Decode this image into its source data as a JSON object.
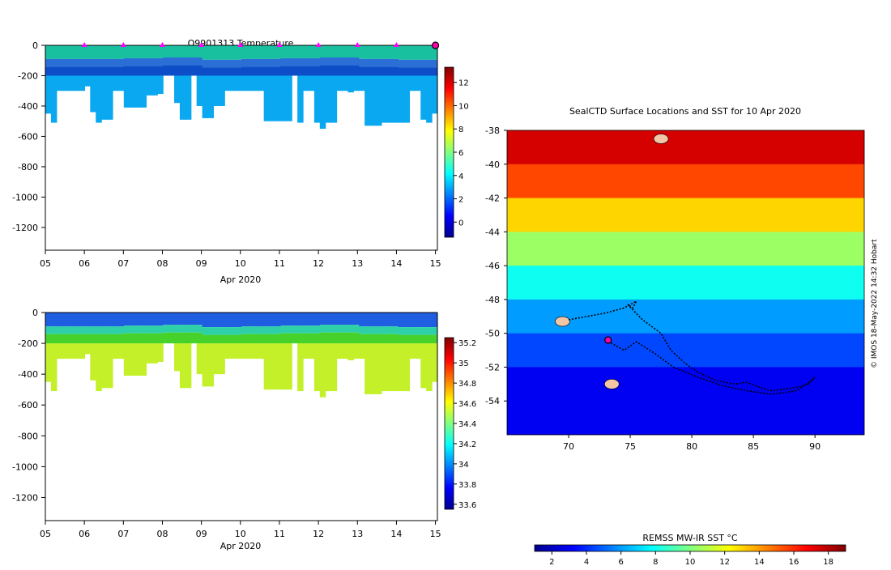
{
  "colors": {
    "jet": [
      "#00008f",
      "#0000ff",
      "#0080ff",
      "#00ffff",
      "#80ff80",
      "#ffff00",
      "#ff8000",
      "#ff0000",
      "#800000"
    ],
    "temp_surface": "#19c0a0",
    "temp_mid": "#2b6fd6",
    "temp_deep": "#0d4ec8",
    "temp_bottom": "#0aa8f0",
    "sal_surface": "#1f5ee0",
    "sal_mid": "#2ed0a8",
    "sal_deep": "#46d22a",
    "sal_bottom": "#c4f02a",
    "profile_marker": "#ff00ff",
    "current_marker": "#ff00aa",
    "track": "#000000"
  },
  "chart_data": [
    {
      "type": "heatmap",
      "title": "Q9901313  Temperature",
      "xlabel": "Apr 2020",
      "ylabel": "",
      "x_ticks": [
        "05",
        "06",
        "07",
        "08",
        "09",
        "10",
        "11",
        "12",
        "13",
        "14",
        "15"
      ],
      "x_range": [
        5,
        15.05
      ],
      "y_ticks": [
        0,
        -200,
        -400,
        -600,
        -800,
        -1000,
        -1200
      ],
      "y_range": [
        -1350,
        0
      ],
      "colorbar": {
        "range": [
          -1.3,
          13.3
        ],
        "ticks": [
          0,
          2,
          4,
          6,
          8,
          10,
          12
        ],
        "labels": [
          "0",
          "2",
          "4",
          "6",
          "8",
          "10",
          "12"
        ]
      },
      "profile_markers_day": [
        6,
        7,
        8,
        9,
        10,
        11,
        12,
        13,
        14
      ],
      "current_marker_day": 15,
      "mixed_layer_depth": [
        -90,
        -90,
        -85,
        -80,
        -95,
        -90,
        -85,
        -80,
        -90,
        -95
      ],
      "profile_max_depth": [
        -450,
        -510,
        -300,
        -300,
        -300,
        -300,
        -300,
        -270,
        -440,
        -510,
        -490,
        -490,
        -300,
        -300,
        -410,
        -410,
        -410,
        -410,
        -330,
        -330,
        -320,
        -200,
        -200,
        -380,
        -490,
        -490,
        -200,
        -400,
        -480,
        -480,
        -400,
        -400,
        -300,
        -300,
        -300,
        -300,
        -300,
        -300,
        -300,
        -500,
        -500,
        -500,
        -500,
        -500,
        -200,
        -510,
        -300,
        -300,
        -510,
        -550,
        -510,
        -510,
        -300,
        -300,
        -310,
        -300,
        -300,
        -530,
        -530,
        -530,
        -510,
        -510,
        -510,
        -510,
        -510,
        -300,
        -300,
        -490,
        -510,
        -450
      ]
    },
    {
      "type": "heatmap",
      "title": "",
      "xlabel": "Apr 2020",
      "ylabel": "",
      "x_ticks": [
        "05",
        "06",
        "07",
        "08",
        "09",
        "10",
        "11",
        "12",
        "13",
        "14",
        "15"
      ],
      "x_range": [
        5,
        15.05
      ],
      "y_ticks": [
        0,
        -200,
        -400,
        -600,
        -800,
        -1000,
        -1200
      ],
      "y_range": [
        -1350,
        0
      ],
      "colorbar": {
        "range": [
          33.55,
          35.25
        ],
        "ticks": [
          33.6,
          33.8,
          34,
          34.2,
          34.4,
          34.6,
          34.8,
          35,
          35.2
        ],
        "labels": [
          "33.6",
          "33.8",
          "34",
          "34.2",
          "34.4",
          "34.6",
          "34.8",
          "35",
          "35.2"
        ]
      }
    },
    {
      "type": "heatmap",
      "title": "SealCTD Surface Locations and SST for 10 Apr 2020",
      "xlabel": "",
      "ylabel": "",
      "x_ticks": [
        70,
        75,
        80,
        85,
        90
      ],
      "x_range": [
        65,
        94
      ],
      "y_ticks": [
        -38,
        -40,
        -42,
        -44,
        -46,
        -48,
        -50,
        -52,
        -54
      ],
      "y_range": [
        -56,
        -38
      ],
      "colorbar": {
        "label": "REMSS MW-IR SST °C",
        "range": [
          1,
          19
        ],
        "ticks": [
          2,
          4,
          6,
          8,
          10,
          12,
          14,
          16,
          18
        ],
        "labels": [
          "2",
          "4",
          "6",
          "8",
          "10",
          "12",
          "14",
          "16",
          "18"
        ]
      },
      "sst_bands": [
        {
          "lat_from": -38,
          "lat_to": -40,
          "value": 17.5
        },
        {
          "lat_from": -40,
          "lat_to": -42,
          "value": 15.5
        },
        {
          "lat_from": -42,
          "lat_to": -44,
          "value": 13.0
        },
        {
          "lat_from": -44,
          "lat_to": -46,
          "value": 10.5
        },
        {
          "lat_from": -46,
          "lat_to": -48,
          "value": 8.0
        },
        {
          "lat_from": -48,
          "lat_to": -50,
          "value": 6.0
        },
        {
          "lat_from": -50,
          "lat_to": -52,
          "value": 4.5
        },
        {
          "lat_from": -52,
          "lat_to": -56,
          "value": 3.0
        }
      ],
      "track": [
        [
          70.0,
          -49.2
        ],
        [
          71.5,
          -49.0
        ],
        [
          73.0,
          -48.8
        ],
        [
          74.5,
          -48.5
        ],
        [
          75.5,
          -48.1
        ],
        [
          75.2,
          -48.5
        ],
        [
          74.8,
          -48.3
        ],
        [
          76.0,
          -49.2
        ],
        [
          77.5,
          -50.0
        ],
        [
          78.3,
          -51.0
        ],
        [
          79.5,
          -51.8
        ],
        [
          80.5,
          -52.3
        ],
        [
          82.0,
          -52.8
        ],
        [
          83.5,
          -53.0
        ],
        [
          84.5,
          -52.9
        ],
        [
          85.5,
          -53.2
        ],
        [
          86.5,
          -53.4
        ],
        [
          87.5,
          -53.3
        ],
        [
          88.5,
          -53.2
        ],
        [
          89.5,
          -53.0
        ],
        [
          90.0,
          -52.6
        ],
        [
          89.5,
          -52.9
        ],
        [
          88.5,
          -53.4
        ],
        [
          86.5,
          -53.6
        ],
        [
          84.5,
          -53.4
        ],
        [
          82.5,
          -53.1
        ],
        [
          80.5,
          -52.6
        ],
        [
          78.5,
          -52.0
        ],
        [
          77.0,
          -51.2
        ],
        [
          75.5,
          -50.5
        ],
        [
          74.5,
          -51.0
        ],
        [
          73.5,
          -50.6
        ],
        [
          73.2,
          -50.4
        ]
      ],
      "current_location": [
        73.2,
        -50.4
      ],
      "islands": [
        [
          69.5,
          -49.3
        ],
        [
          73.5,
          -53.0
        ],
        [
          77.5,
          -38.5
        ]
      ]
    }
  ],
  "credit": "© IMOS 18-May-2022 14:32 Hobart"
}
